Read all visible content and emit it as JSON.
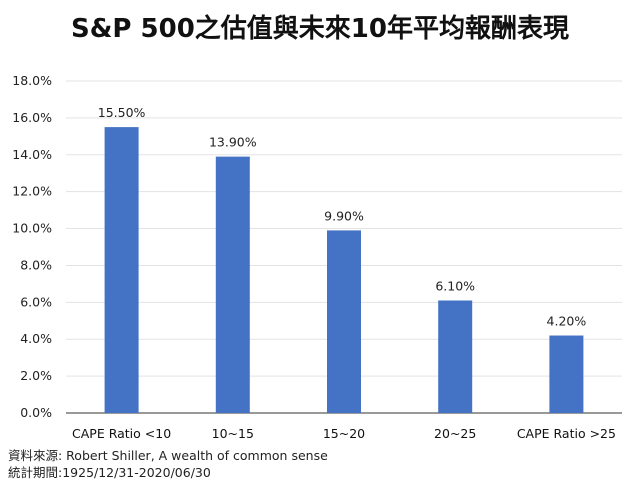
{
  "title": "S&P 500之估值與未來10年平均報酬表現",
  "footer": {
    "source": "資料來源: Robert Shiller, A wealth of common sense",
    "period": "統計期間:1925/12/31-2020/06/30"
  },
  "colors": {
    "bar": "#4472C4",
    "grid": "#e3e3e3",
    "axis": "#333333"
  },
  "chart_data": {
    "type": "bar",
    "categories": [
      "CAPE Ratio <10",
      "10~15",
      "15~20",
      "20~25",
      "CAPE Ratio >25"
    ],
    "values": [
      15.5,
      13.9,
      9.9,
      6.1,
      4.2
    ],
    "data_labels": [
      "15.50%",
      "13.90%",
      "9.90%",
      "6.10%",
      "4.20%"
    ],
    "y_ticks": [
      "0.0%",
      "2.0%",
      "4.0%",
      "6.0%",
      "8.0%",
      "10.0%",
      "12.0%",
      "14.0%",
      "16.0%",
      "18.0%"
    ],
    "ylim": [
      0,
      18
    ],
    "grid": true,
    "title": "S&P 500之估值與未來10年平均報酬表現",
    "xlabel": "",
    "ylabel": ""
  }
}
